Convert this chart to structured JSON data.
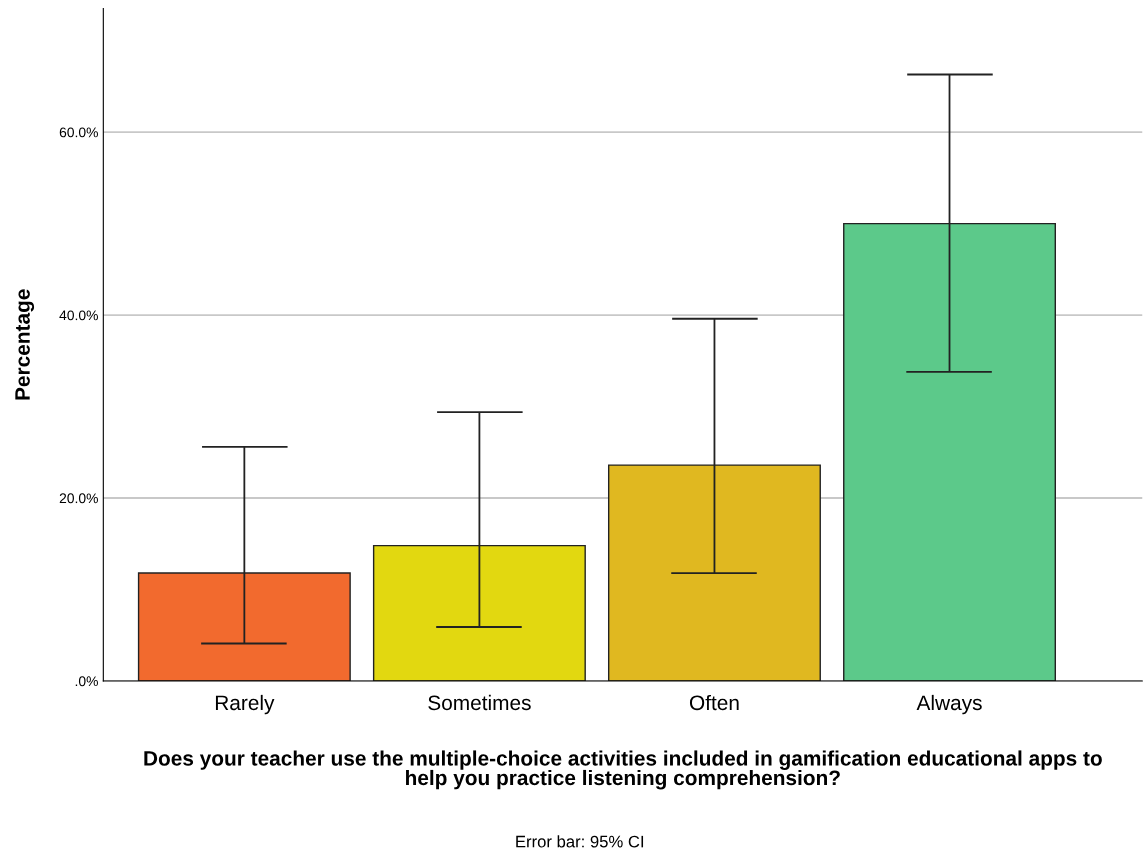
{
  "chart_data": {
    "type": "bar",
    "xlabel": "Does your teacher use the multiple-choice activities included in gamification educational apps to\nhelp you practice listening comprehension?",
    "ylabel": "Percentage",
    "categories": [
      "Rarely",
      "Sometimes",
      "Often",
      "Always"
    ],
    "values": [
      11.8,
      14.8,
      23.6,
      50.0
    ],
    "colors": [
      "#f26a2e",
      "#e2d810",
      "#e0b820",
      "#5cc98a"
    ],
    "errors": [
      [
        4.1,
        25.6
      ],
      [
        5.9,
        29.4
      ],
      [
        11.8,
        39.6
      ],
      [
        33.8,
        66.3
      ]
    ],
    "ylim": [
      0,
      73.5
    ],
    "yticks": [
      {
        "value": 0,
        "label": ".0%"
      },
      {
        "value": 20,
        "label": "20.0%"
      },
      {
        "value": 40,
        "label": "40.0%"
      },
      {
        "value": 60,
        "label": "60.0%"
      }
    ],
    "grid": "y",
    "legend": false,
    "annotations": [
      "Error bar: 95% CI"
    ]
  }
}
